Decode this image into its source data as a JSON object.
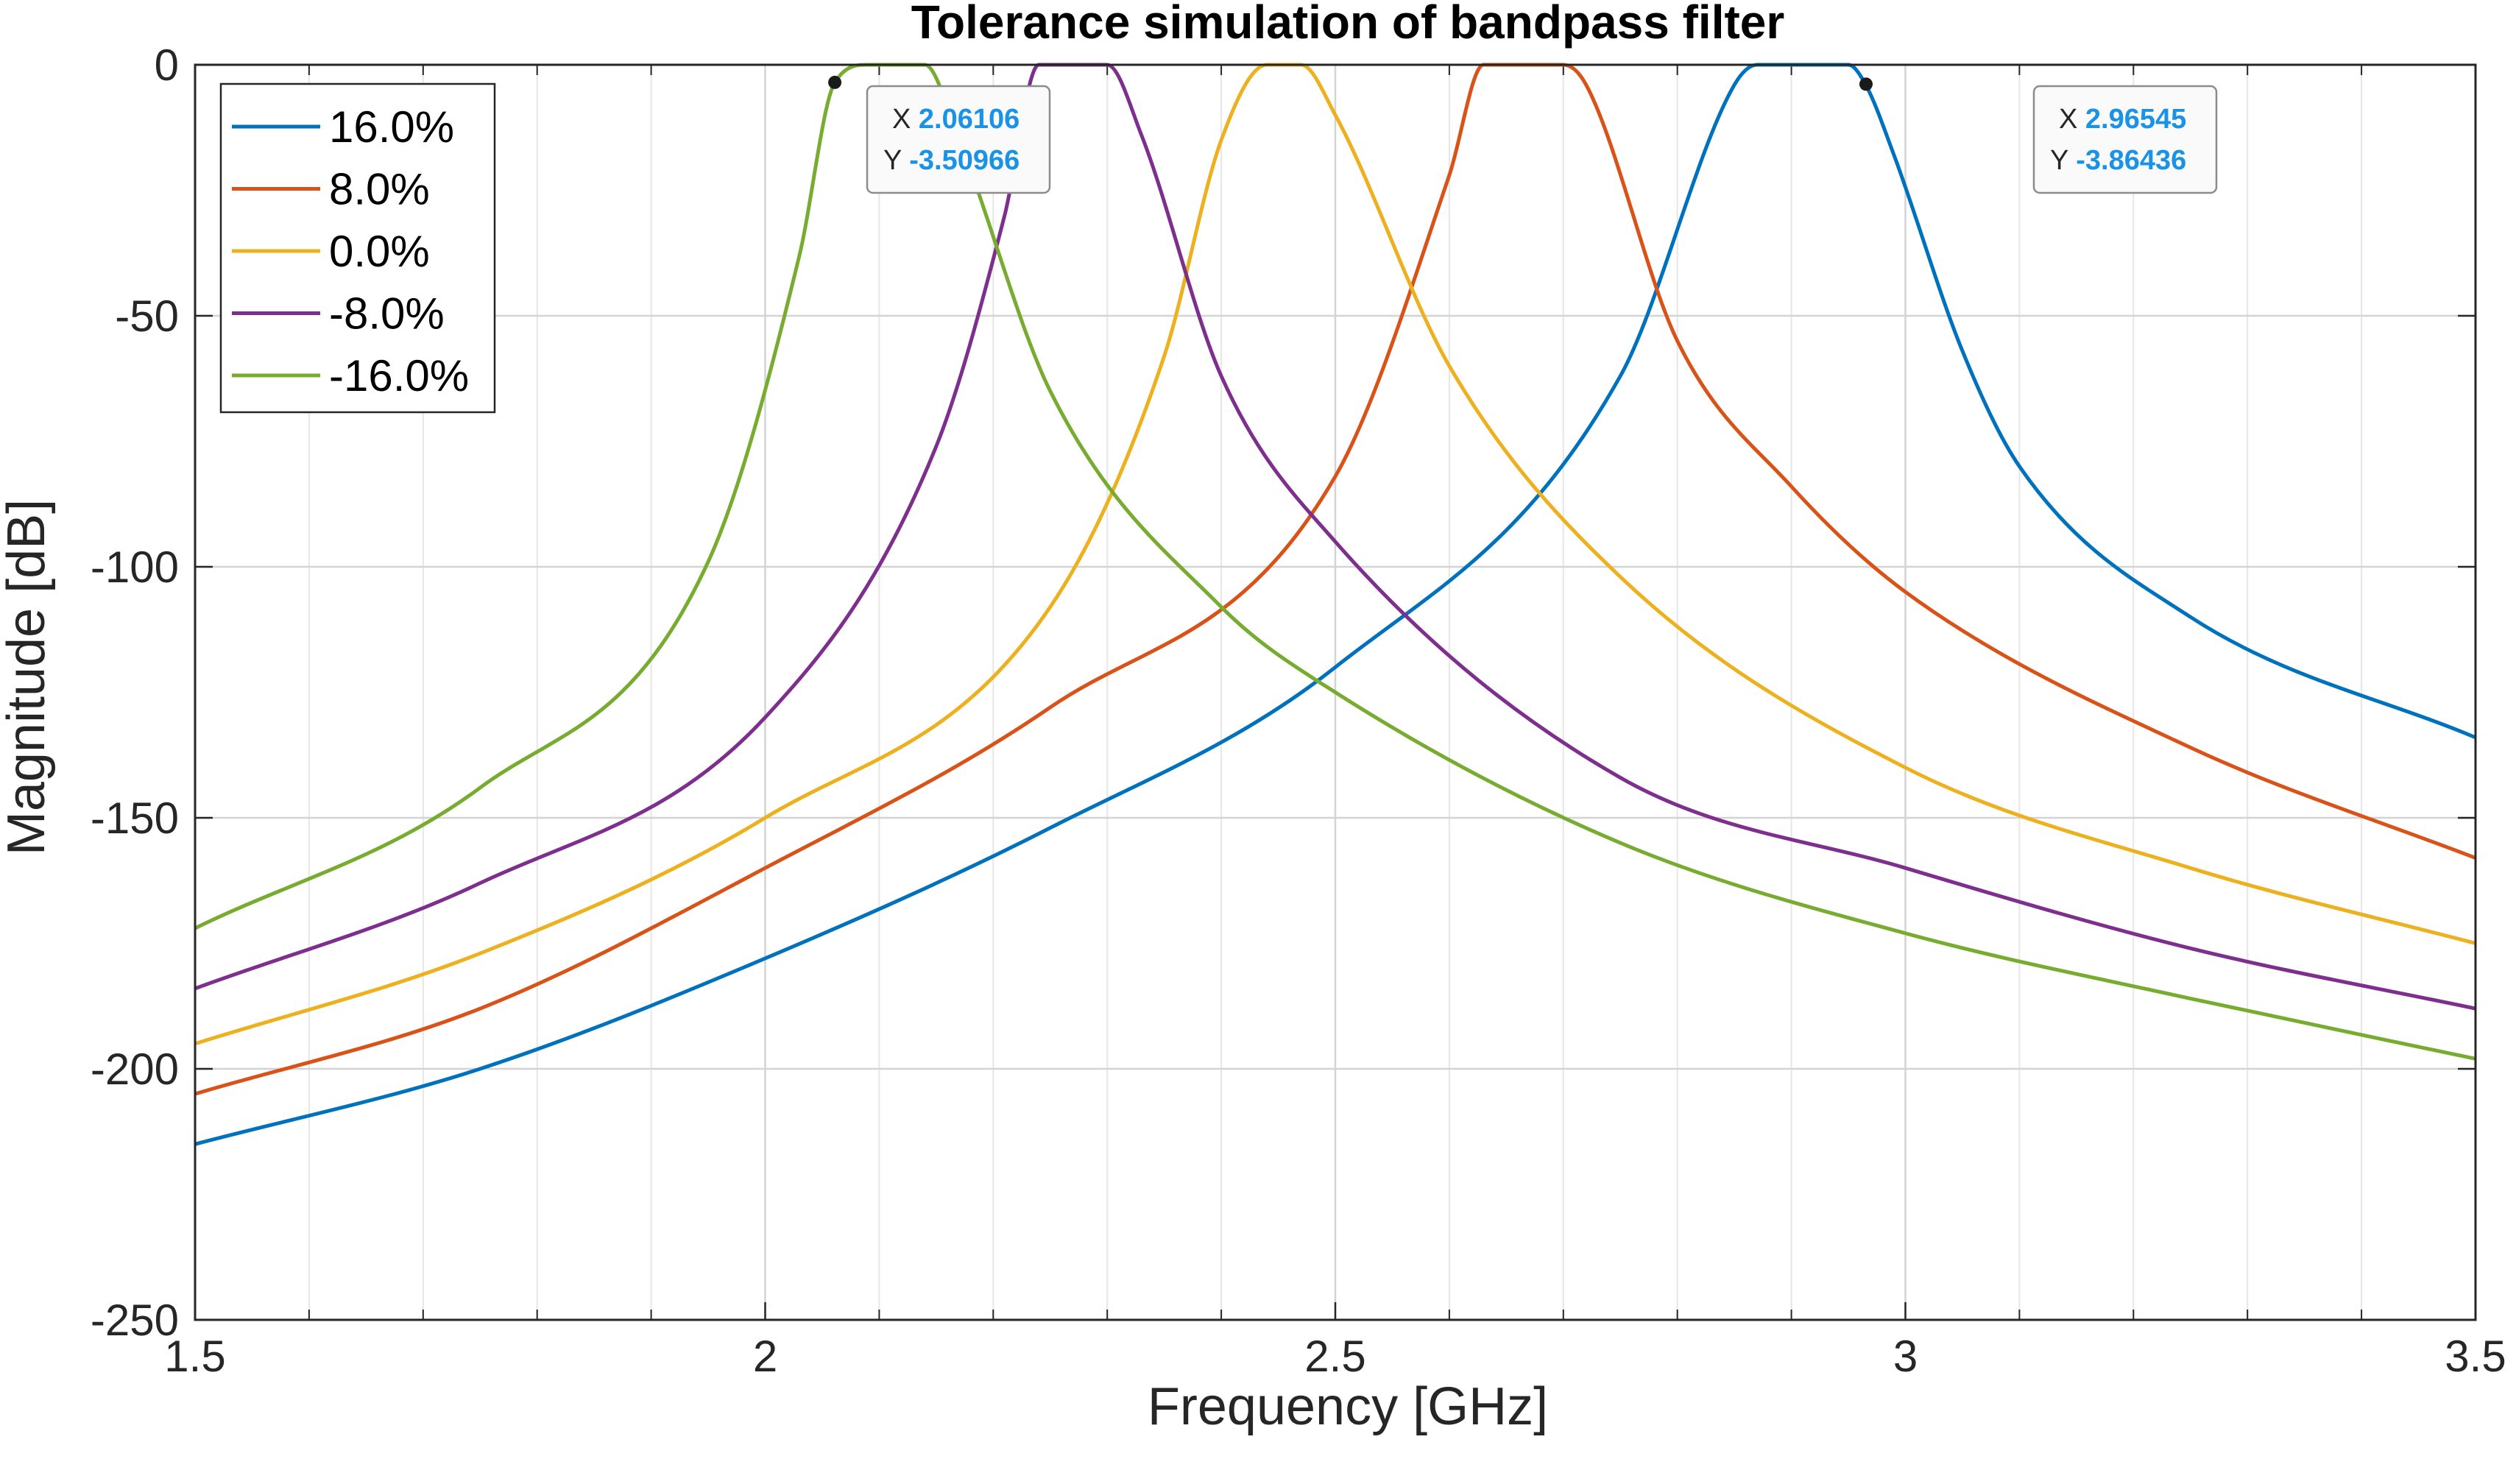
{
  "chart_data": {
    "type": "line",
    "title": "Tolerance simulation of bandpass filter",
    "xlabel": "Frequency [GHz]",
    "ylabel": "Magnitude [dB]",
    "xlim": [
      1.5,
      3.5
    ],
    "ylim": [
      -250,
      0
    ],
    "xscale": "linear",
    "yscale": "linear",
    "xticks": [
      1.5,
      2,
      2.5,
      3,
      3.5
    ],
    "xtick_labels": [
      "1.5",
      "2",
      "2.5",
      "3",
      "3.5"
    ],
    "yticks": [
      0,
      -50,
      -100,
      -150,
      -200,
      -250
    ],
    "ytick_labels": [
      "0",
      "-50",
      "-100",
      "-150",
      "-200",
      "-250"
    ],
    "grid": "on (major and minor x, major y)",
    "legend_location": "top-left",
    "series": [
      {
        "name": "16.0%",
        "color": "#0072BD",
        "x": [
          1.5,
          1.75,
          2.0,
          2.25,
          2.5,
          2.75,
          2.85,
          2.87,
          2.95,
          2.965,
          2.99,
          3.05,
          3.1,
          3.25,
          3.5
        ],
        "y": [
          -215,
          -200,
          -178,
          -152,
          -120,
          -62,
          -4,
          0,
          0,
          -3.9,
          -18,
          -57,
          -80,
          -110,
          -134
        ]
      },
      {
        "name": "8.0%",
        "color": "#D95319",
        "x": [
          1.5,
          1.75,
          2.0,
          2.25,
          2.5,
          2.6,
          2.63,
          2.7,
          2.72,
          2.8,
          2.9,
          3.0,
          3.25,
          3.5
        ],
        "y": [
          -205,
          -188,
          -160,
          -128,
          -82,
          -22,
          0,
          0,
          -4,
          -55,
          -84,
          -105,
          -136,
          -158
        ]
      },
      {
        "name": "0.0%",
        "color": "#EDB120",
        "x": [
          1.5,
          1.75,
          2.0,
          2.25,
          2.35,
          2.4,
          2.44,
          2.47,
          2.5,
          2.6,
          2.75,
          3.0,
          3.25,
          3.5
        ],
        "y": [
          -195,
          -177,
          -150,
          -108,
          -58,
          -15,
          0,
          0,
          -10,
          -60,
          -102,
          -140,
          -160,
          -175
        ]
      },
      {
        "name": "-8.0%",
        "color": "#7E2F8E",
        "x": [
          1.5,
          1.75,
          2.0,
          2.15,
          2.21,
          2.24,
          2.3,
          2.33,
          2.4,
          2.5,
          2.75,
          3.0,
          3.25,
          3.5
        ],
        "y": [
          -184,
          -163,
          -130,
          -76,
          -30,
          0,
          0,
          -14,
          -62,
          -95,
          -142,
          -160,
          -176,
          -188
        ]
      },
      {
        "name": "-16.0%",
        "color": "#77AC30",
        "x": [
          1.5,
          1.75,
          1.95,
          2.03,
          2.06106,
          2.09,
          2.14,
          2.17,
          2.25,
          2.4,
          2.5,
          2.75,
          3.0,
          3.25,
          3.5
        ],
        "y": [
          -172,
          -144,
          -99,
          -38,
          -3.50966,
          0,
          0,
          -15,
          -65,
          -108,
          -125,
          -155,
          -173,
          -186,
          -198
        ]
      }
    ],
    "annotations": [
      {
        "series": "-16.0%",
        "x_label": "X",
        "y_label": "Y",
        "x": 2.06106,
        "y": -3.50966,
        "x_text": "2.06106",
        "y_text": "-3.50966"
      },
      {
        "series": "16.0%",
        "x_label": "X",
        "y_label": "Y",
        "x": 2.96545,
        "y": -3.86436,
        "x_text": "2.96545",
        "y_text": "-3.86436"
      }
    ]
  }
}
